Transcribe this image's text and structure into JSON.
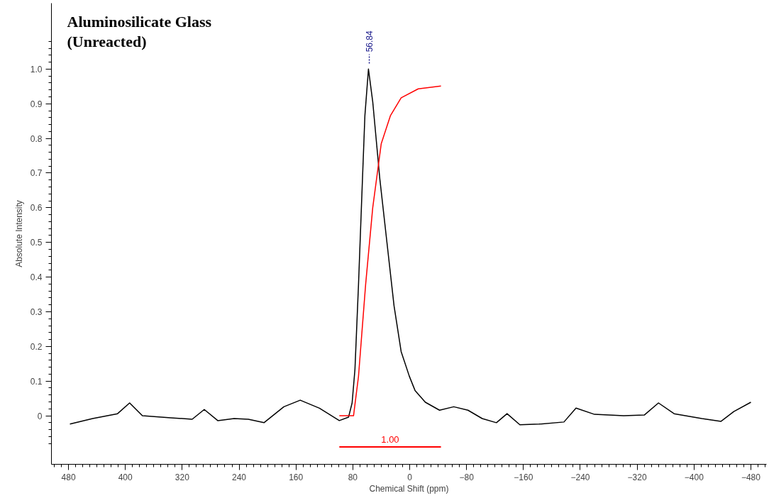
{
  "chart_data": {
    "type": "line",
    "title": "Aluminosilicate Glass\n(Unreacted)",
    "xlabel": "Chemical Shift (ppm)",
    "ylabel": "Absolute Intensity",
    "xlim": [
      504,
      -502
    ],
    "ylim": [
      -0.14,
      1.19
    ],
    "xticks": [
      480,
      400,
      320,
      240,
      160,
      80,
      0,
      -80,
      -160,
      -240,
      -320,
      -400,
      -480
    ],
    "yticks": [
      0,
      0.1,
      0.2,
      0.3,
      0.4,
      0.5,
      0.6,
      0.7,
      0.8,
      0.9,
      {
        "value": 1,
        "label": "1.0"
      }
    ],
    "grid": false,
    "legend": false,
    "marker": "none",
    "line_style": "solid",
    "series": [
      {
        "color": "#000000",
        "x": [
          478,
          446,
          411,
          394,
          376,
          336,
          306,
          289,
          270,
          247,
          227,
          205,
          177,
          154,
          127,
          99,
          86,
          81,
          77,
          72,
          67,
          63,
          58,
          52,
          42,
          32,
          22,
          12,
          0.5,
          -7.5,
          -22,
          -42,
          -62,
          -82,
          -102,
          -122,
          -137,
          -155,
          -182,
          -217,
          -234,
          -260,
          -301,
          -330,
          -350,
          -372,
          -411,
          -438,
          -456,
          -480
        ],
        "values": [
          -0.024,
          -0.008,
          0.006,
          0.037,
          0.0,
          -0.006,
          -0.01,
          0.018,
          -0.014,
          -0.008,
          -0.01,
          -0.02,
          0.026,
          0.045,
          0.022,
          -0.014,
          -0.004,
          0.037,
          0.134,
          0.378,
          0.652,
          0.866,
          1.0,
          0.906,
          0.683,
          0.5,
          0.317,
          0.185,
          0.114,
          0.073,
          0.039,
          0.016,
          0.026,
          0.016,
          -0.008,
          -0.02,
          0.006,
          -0.026,
          -0.024,
          -0.018,
          0.022,
          0.004,
          0.0,
          0.002,
          0.037,
          0.006,
          -0.008,
          -0.016,
          0.012,
          0.039
        ]
      },
      {
        "color": "#ff0000",
        "x": [
          99,
          79,
          72,
          62,
          52,
          40,
          27,
          12,
          -12,
          -44
        ],
        "values": [
          0.0,
          0.0,
          0.114,
          0.378,
          0.6,
          0.785,
          0.866,
          0.917,
          0.943,
          0.951
        ]
      },
      {
        "name": "1.00",
        "color": "#ff0000",
        "x": [
          99,
          -44
        ],
        "values": [
          -0.09,
          -0.09
        ]
      }
    ],
    "annotations": [
      {
        "text": "56.84",
        "x": 56.84,
        "y": 1.0
      }
    ]
  }
}
